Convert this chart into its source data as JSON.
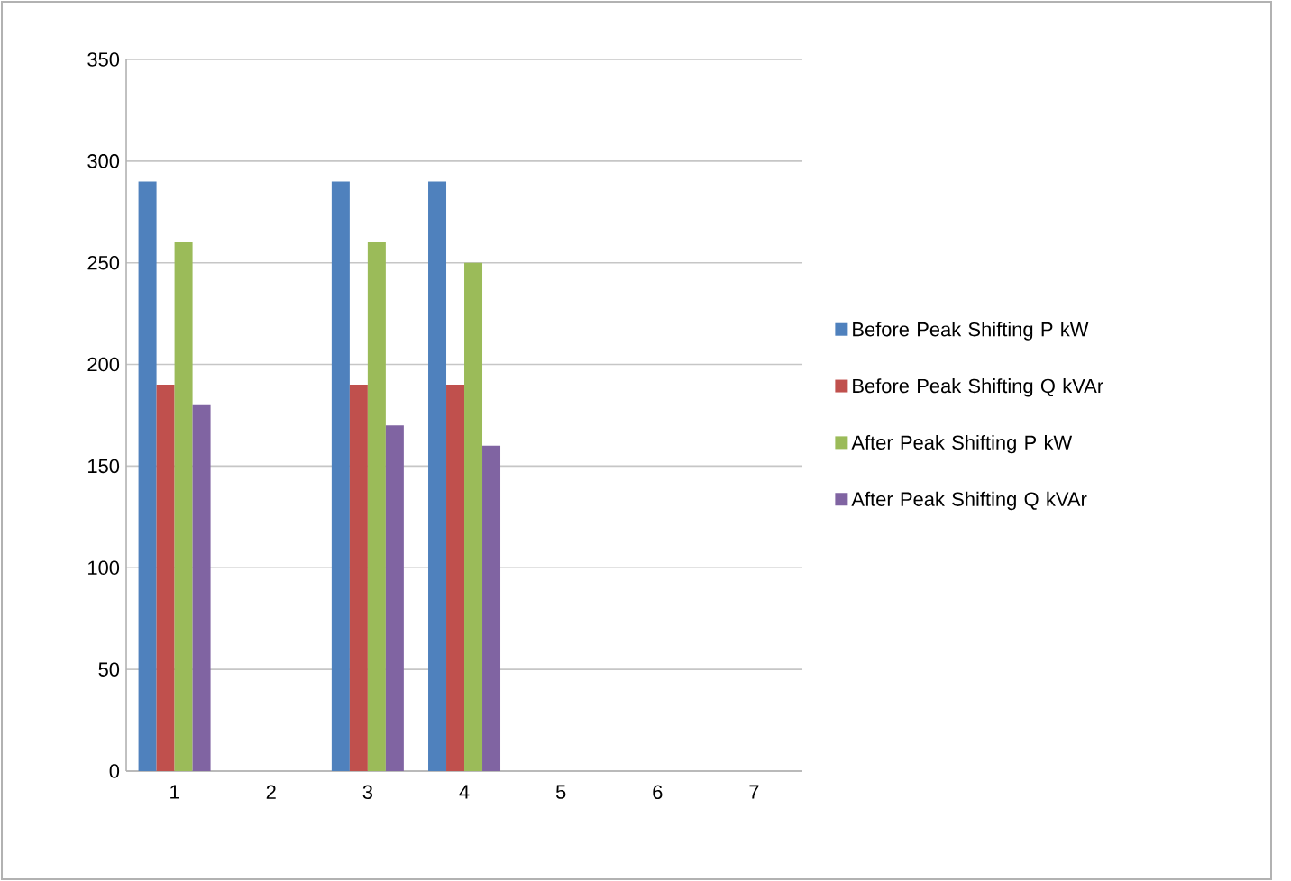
{
  "chart_data": {
    "type": "bar",
    "categories": [
      "1",
      "2",
      "3",
      "4",
      "5",
      "6",
      "7"
    ],
    "series": [
      {
        "name": "Before Peak Shifting  P  kW",
        "color": "#4f81bd",
        "values": [
          290,
          null,
          290,
          290,
          null,
          null,
          null
        ]
      },
      {
        "name": "Before Peak Shifting  Q  kVAr",
        "color": "#c0504d",
        "values": [
          190,
          null,
          190,
          190,
          null,
          null,
          null
        ]
      },
      {
        "name": "After Peak Shifting  P  kW",
        "color": "#9bbb59",
        "values": [
          260,
          null,
          260,
          250,
          null,
          null,
          null
        ]
      },
      {
        "name": "After Peak Shifting  Q  kVAr",
        "color": "#8064a2",
        "values": [
          180,
          null,
          170,
          160,
          null,
          null,
          null
        ]
      }
    ],
    "ylim": [
      0,
      350
    ],
    "yticks": [
      0,
      50,
      100,
      150,
      200,
      250,
      300,
      350
    ],
    "grid": "y",
    "legend": "right"
  }
}
